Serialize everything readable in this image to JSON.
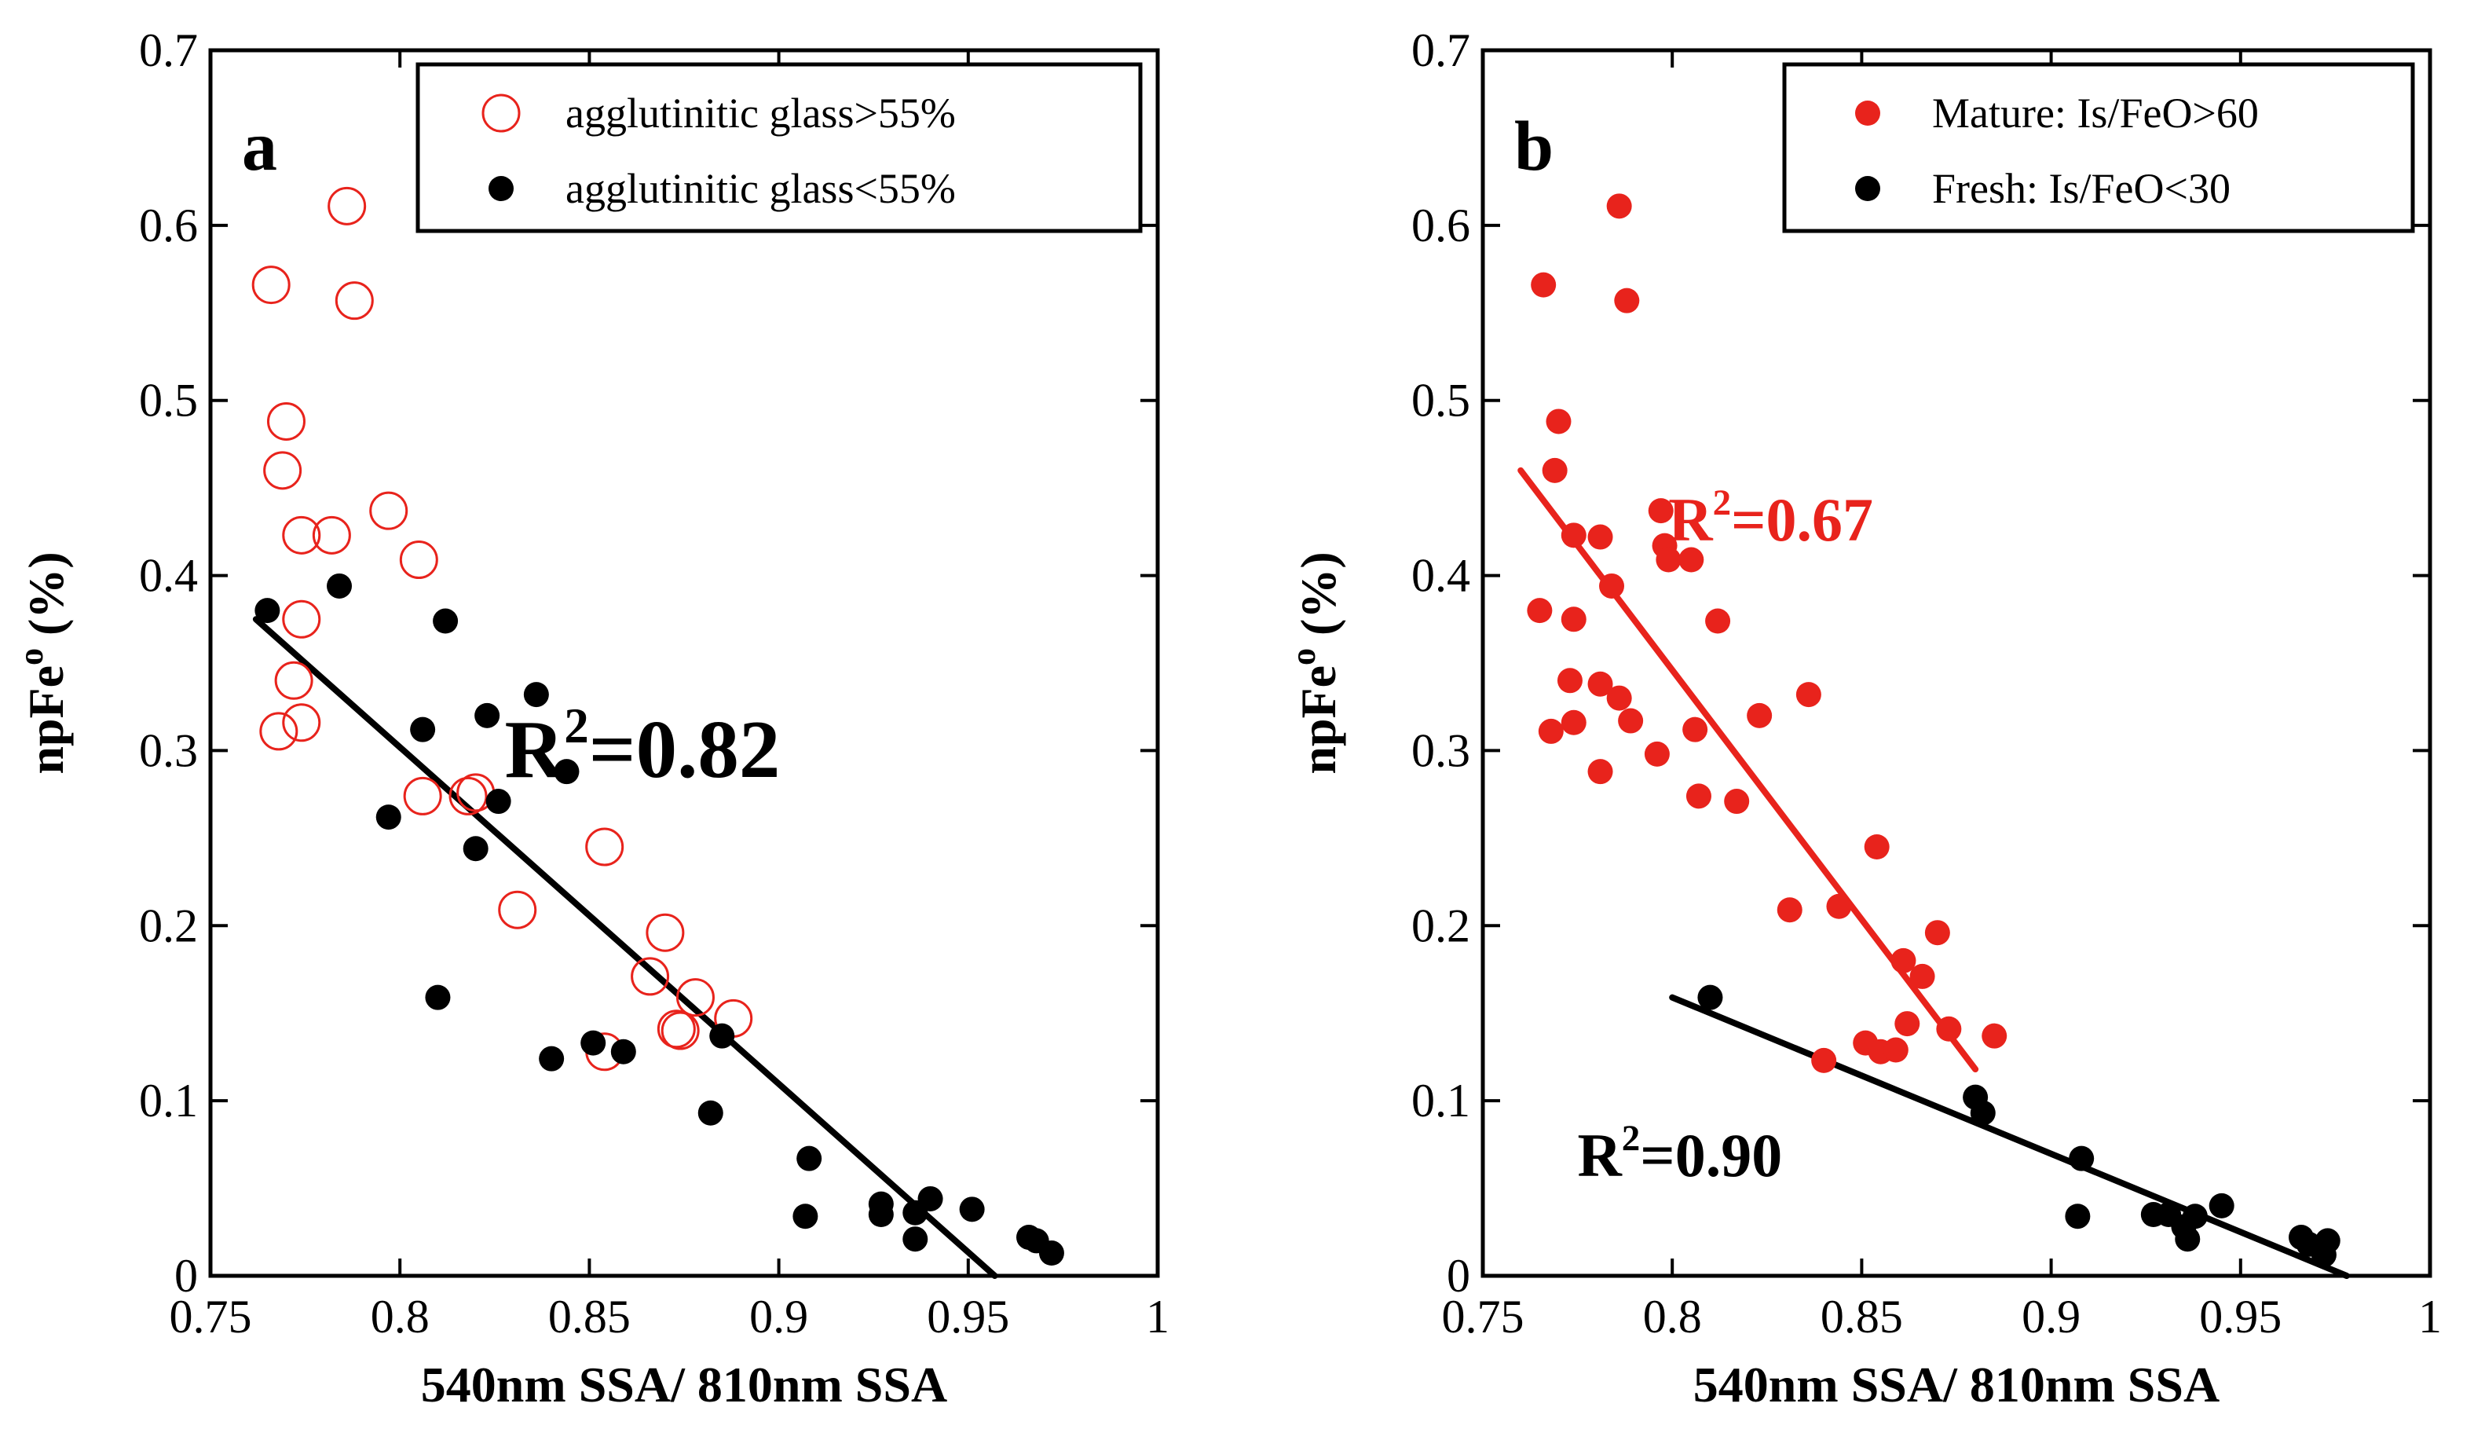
{
  "chart_data": [
    {
      "type": "scatter",
      "panel_label": "a",
      "xlabel": "540nm SSA/ 810nm SSA",
      "ylabel": "npFe",
      "ylabel_sup": "o",
      "ylabel_suffix": " (%)",
      "xlim": [
        0.75,
        1.0
      ],
      "ylim": [
        0,
        0.7
      ],
      "xticks": [
        0.75,
        0.8,
        0.85,
        0.9,
        0.95,
        1.0
      ],
      "xtick_labels": [
        "0.75",
        "0.8",
        "0.85",
        "0.9",
        "0.95",
        "1"
      ],
      "yticks": [
        0,
        0.1,
        0.2,
        0.3,
        0.4,
        0.5,
        0.6,
        0.7
      ],
      "ytick_labels": [
        "0",
        "0.1",
        "0.2",
        "0.3",
        "0.4",
        "0.5",
        "0.6",
        "0.7"
      ],
      "grid": false,
      "legend_position": "top-right",
      "series": [
        {
          "name": "agglutinitic glass>55%",
          "marker": "open-circle",
          "color": "#e8231c",
          "points": [
            [
              0.766,
              0.566
            ],
            [
              0.786,
              0.611
            ],
            [
              0.788,
              0.557
            ],
            [
              0.77,
              0.488
            ],
            [
              0.769,
              0.46
            ],
            [
              0.774,
              0.423
            ],
            [
              0.782,
              0.423
            ],
            [
              0.797,
              0.437
            ],
            [
              0.805,
              0.409
            ],
            [
              0.774,
              0.375
            ],
            [
              0.772,
              0.34
            ],
            [
              0.768,
              0.311
            ],
            [
              0.774,
              0.316
            ],
            [
              0.806,
              0.274
            ],
            [
              0.818,
              0.274
            ],
            [
              0.82,
              0.276
            ],
            [
              0.831,
              0.209
            ],
            [
              0.854,
              0.245
            ],
            [
              0.87,
              0.196
            ],
            [
              0.866,
              0.171
            ],
            [
              0.878,
              0.159
            ],
            [
              0.873,
              0.141
            ],
            [
              0.874,
              0.14
            ],
            [
              0.888,
              0.147
            ],
            [
              0.854,
              0.128
            ]
          ]
        },
        {
          "name": "agglutinitic glass<55%",
          "marker": "filled-circle",
          "color": "#000000",
          "points": [
            [
              0.765,
              0.38
            ],
            [
              0.784,
              0.394
            ],
            [
              0.812,
              0.374
            ],
            [
              0.836,
              0.332
            ],
            [
              0.823,
              0.32
            ],
            [
              0.806,
              0.312
            ],
            [
              0.844,
              0.288
            ],
            [
              0.826,
              0.271
            ],
            [
              0.797,
              0.262
            ],
            [
              0.82,
              0.244
            ],
            [
              0.81,
              0.159
            ],
            [
              0.84,
              0.124
            ],
            [
              0.851,
              0.133
            ],
            [
              0.859,
              0.128
            ],
            [
              0.885,
              0.137
            ],
            [
              0.882,
              0.093
            ],
            [
              0.908,
              0.067
            ],
            [
              0.907,
              0.034
            ],
            [
              0.927,
              0.041
            ],
            [
              0.927,
              0.035
            ],
            [
              0.936,
              0.036
            ],
            [
              0.936,
              0.021
            ],
            [
              0.94,
              0.044
            ],
            [
              0.951,
              0.038
            ],
            [
              0.966,
              0.022
            ],
            [
              0.968,
              0.02
            ],
            [
              0.972,
              0.013
            ]
          ]
        }
      ],
      "fit_lines": [
        {
          "color": "#000000",
          "from": [
            0.762,
            0.375
          ],
          "to": [
            0.957,
            0.0
          ]
        }
      ],
      "annotations": [
        {
          "base": "R",
          "sup": "2",
          "rest": "=0.82",
          "color": "#000000",
          "x": 0.864,
          "y": 0.285
        }
      ]
    },
    {
      "type": "scatter",
      "panel_label": "b",
      "xlabel": "540nm SSA/ 810nm SSA",
      "ylabel": "npFe",
      "ylabel_sup": "o",
      "ylabel_suffix": " (%)",
      "xlim": [
        0.75,
        1.0
      ],
      "ylim": [
        0,
        0.7
      ],
      "xticks": [
        0.75,
        0.8,
        0.85,
        0.9,
        0.95,
        1.0
      ],
      "xtick_labels": [
        "0.75",
        "0.8",
        "0.85",
        "0.9",
        "0.95",
        "1"
      ],
      "yticks": [
        0,
        0.1,
        0.2,
        0.3,
        0.4,
        0.5,
        0.6,
        0.7
      ],
      "ytick_labels": [
        "0",
        "0.1",
        "0.2",
        "0.3",
        "0.4",
        "0.5",
        "0.6",
        "0.7"
      ],
      "grid": false,
      "legend_position": "top-right",
      "series": [
        {
          "name": "Mature: Is/FeO>60",
          "marker": "filled-circle",
          "color": "#e8231c",
          "points": [
            [
              0.766,
              0.566
            ],
            [
              0.786,
              0.611
            ],
            [
              0.788,
              0.557
            ],
            [
              0.77,
              0.488
            ],
            [
              0.769,
              0.46
            ],
            [
              0.797,
              0.437
            ],
            [
              0.774,
              0.423
            ],
            [
              0.781,
              0.422
            ],
            [
              0.798,
              0.417
            ],
            [
              0.799,
              0.409
            ],
            [
              0.805,
              0.409
            ],
            [
              0.765,
              0.38
            ],
            [
              0.774,
              0.375
            ],
            [
              0.784,
              0.394
            ],
            [
              0.812,
              0.374
            ],
            [
              0.773,
              0.34
            ],
            [
              0.781,
              0.338
            ],
            [
              0.786,
              0.33
            ],
            [
              0.836,
              0.332
            ],
            [
              0.823,
              0.32
            ],
            [
              0.789,
              0.317
            ],
            [
              0.774,
              0.316
            ],
            [
              0.768,
              0.311
            ],
            [
              0.806,
              0.312
            ],
            [
              0.796,
              0.298
            ],
            [
              0.781,
              0.288
            ],
            [
              0.807,
              0.274
            ],
            [
              0.817,
              0.271
            ],
            [
              0.854,
              0.245
            ],
            [
              0.831,
              0.209
            ],
            [
              0.844,
              0.211
            ],
            [
              0.87,
              0.196
            ],
            [
              0.861,
              0.18
            ],
            [
              0.866,
              0.171
            ],
            [
              0.873,
              0.141
            ],
            [
              0.862,
              0.144
            ],
            [
              0.885,
              0.137
            ],
            [
              0.851,
              0.133
            ],
            [
              0.855,
              0.128
            ],
            [
              0.859,
              0.129
            ],
            [
              0.84,
              0.123
            ]
          ]
        },
        {
          "name": "Fresh: Is/FeO<30",
          "marker": "filled-circle",
          "color": "#000000",
          "points": [
            [
              0.81,
              0.159
            ],
            [
              0.88,
              0.102
            ],
            [
              0.882,
              0.093
            ],
            [
              0.908,
              0.067
            ],
            [
              0.907,
              0.034
            ],
            [
              0.927,
              0.035
            ],
            [
              0.931,
              0.035
            ],
            [
              0.935,
              0.028
            ],
            [
              0.936,
              0.021
            ],
            [
              0.938,
              0.034
            ],
            [
              0.945,
              0.04
            ],
            [
              0.966,
              0.022
            ],
            [
              0.968,
              0.018
            ],
            [
              0.972,
              0.012
            ],
            [
              0.973,
              0.02
            ]
          ]
        }
      ],
      "fit_lines": [
        {
          "color": "#e8231c",
          "from": [
            0.76,
            0.46
          ],
          "to": [
            0.88,
            0.118
          ]
        },
        {
          "color": "#000000",
          "from": [
            0.8,
            0.159
          ],
          "to": [
            0.978,
            0.0
          ]
        }
      ],
      "annotations": [
        {
          "base": "R",
          "sup": "2",
          "rest": "=0.67",
          "color": "#e8231c",
          "x": 0.826,
          "y": 0.42
        },
        {
          "base": "R",
          "sup": "2",
          "rest": "=0.90",
          "color": "#000000",
          "x": 0.802,
          "y": 0.057
        }
      ]
    }
  ]
}
